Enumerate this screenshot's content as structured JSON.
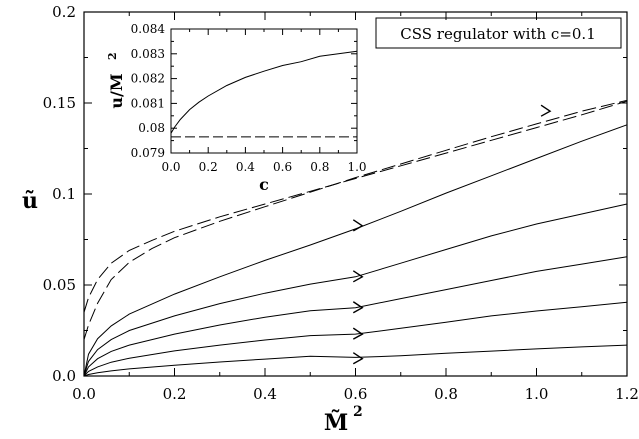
{
  "chart_data": [
    {
      "type": "line",
      "xlabel": "M̃",
      "xlabel_sup": "2",
      "ylabel": "ũ",
      "xlim": [
        0,
        1.2
      ],
      "ylim": [
        0,
        0.2
      ],
      "x_ticks": [
        "0.0",
        "0.2",
        "0.4",
        "0.6",
        "0.8",
        "1.0",
        "1.2"
      ],
      "y_ticks": [
        "0.0",
        "0.05",
        "0.1",
        "0.15",
        "0.2"
      ],
      "legend_text": "CSS regulator with c=0.1",
      "legend_position": "top-right",
      "series": [
        {
          "style": "solid",
          "x": [
            0,
            0.01,
            0.03,
            0.06,
            0.1,
            0.2,
            0.3,
            0.4,
            0.5,
            0.6,
            0.7,
            0.8,
            0.9,
            1.0,
            1.1,
            1.2
          ],
          "y": [
            0,
            0.0008,
            0.0018,
            0.0028,
            0.0039,
            0.0059,
            0.0077,
            0.0093,
            0.0108,
            0.0102,
            0.0111,
            0.0125,
            0.0137,
            0.0149,
            0.016,
            0.017
          ]
        },
        {
          "style": "solid",
          "x": [
            0,
            0.01,
            0.03,
            0.06,
            0.1,
            0.2,
            0.3,
            0.4,
            0.5,
            0.6,
            0.7,
            0.8,
            0.9,
            1.0,
            1.1,
            1.2
          ],
          "y": [
            0,
            0.0025,
            0.005,
            0.0076,
            0.0098,
            0.0138,
            0.017,
            0.0198,
            0.0222,
            0.023,
            0.0262,
            0.0295,
            0.033,
            0.0357,
            0.038,
            0.0405
          ]
        },
        {
          "style": "solid",
          "x": [
            0,
            0.01,
            0.03,
            0.06,
            0.1,
            0.2,
            0.3,
            0.4,
            0.5,
            0.6,
            0.7,
            0.8,
            0.9,
            1.0,
            1.1,
            1.2
          ],
          "y": [
            0,
            0.005,
            0.0095,
            0.0135,
            0.017,
            0.023,
            0.028,
            0.0323,
            0.0358,
            0.0375,
            0.0425,
            0.0475,
            0.0525,
            0.0575,
            0.0615,
            0.0655
          ]
        },
        {
          "style": "solid",
          "x": [
            0,
            0.01,
            0.03,
            0.06,
            0.1,
            0.2,
            0.3,
            0.4,
            0.5,
            0.6,
            0.7,
            0.8,
            0.9,
            1.0,
            1.1,
            1.2
          ],
          "y": [
            0,
            0.008,
            0.0145,
            0.02,
            0.025,
            0.033,
            0.0398,
            0.0455,
            0.0505,
            0.0545,
            0.062,
            0.0695,
            0.077,
            0.0835,
            0.089,
            0.0945
          ]
        },
        {
          "style": "solid",
          "x": [
            0,
            0.01,
            0.03,
            0.06,
            0.1,
            0.2,
            0.3,
            0.4,
            0.5,
            0.6,
            0.7,
            0.8,
            0.9,
            1.0,
            1.1,
            1.2
          ],
          "y": [
            0,
            0.012,
            0.0205,
            0.0275,
            0.034,
            0.045,
            0.0545,
            0.0635,
            0.072,
            0.0808,
            0.0905,
            0.1005,
            0.11,
            0.1195,
            0.129,
            0.138
          ]
        },
        {
          "style": "dashed",
          "x": [
            0,
            0.01,
            0.03,
            0.06,
            0.1,
            0.15,
            0.2,
            0.3,
            0.4,
            0.5,
            0.6,
            0.7,
            0.8,
            0.9,
            1.0,
            1.1,
            1.2
          ],
          "y": [
            0.035,
            0.043,
            0.053,
            0.062,
            0.069,
            0.0745,
            0.0795,
            0.0875,
            0.0945,
            0.1015,
            0.1085,
            0.1155,
            0.1225,
            0.1295,
            0.1365,
            0.1435,
            0.151
          ]
        },
        {
          "style": "dashed",
          "x": [
            0.0,
            0.01,
            0.03,
            0.06,
            0.1,
            0.15,
            0.2,
            0.3,
            0.4,
            0.5,
            0.6,
            0.7,
            0.8,
            0.9,
            1.0,
            1.1,
            1.2
          ],
          "y": [
            0.02,
            0.028,
            0.04,
            0.053,
            0.0625,
            0.07,
            0.076,
            0.085,
            0.093,
            0.101,
            0.109,
            0.1165,
            0.124,
            0.1315,
            0.1385,
            0.1455,
            0.1515
          ]
        }
      ],
      "arrows": [
        {
          "x": 0.615,
          "y": 0.0095
        },
        {
          "x": 0.615,
          "y": 0.023
        },
        {
          "x": 0.615,
          "y": 0.0375
        },
        {
          "x": 0.615,
          "y": 0.0545
        },
        {
          "x": 0.615,
          "y": 0.0825
        },
        {
          "x": 1.03,
          "y": 0.1455
        }
      ]
    },
    {
      "type": "line",
      "xlabel": "c",
      "ylabel": "u/M",
      "ylabel_sup": "2",
      "xlim": [
        0,
        1.0
      ],
      "ylim": [
        0.079,
        0.084
      ],
      "x_ticks": [
        "0.0",
        "0.2",
        "0.4",
        "0.6",
        "0.8",
        "1.0"
      ],
      "y_ticks": [
        "0.079",
        "0.08",
        "0.081",
        "0.082",
        "0.083",
        "0.084"
      ],
      "series": [
        {
          "style": "solid",
          "x": [
            0.0,
            0.02,
            0.05,
            0.1,
            0.15,
            0.2,
            0.3,
            0.4,
            0.5,
            0.6,
            0.7,
            0.8,
            0.9,
            1.0
          ],
          "y": [
            0.0798,
            0.08005,
            0.08035,
            0.08075,
            0.08105,
            0.0813,
            0.08172,
            0.08205,
            0.0823,
            0.08253,
            0.08268,
            0.0829,
            0.083,
            0.0831
          ]
        },
        {
          "style": "dashed",
          "x": [
            0.0,
            1.0
          ],
          "y": [
            0.07965,
            0.07965
          ]
        }
      ]
    }
  ]
}
